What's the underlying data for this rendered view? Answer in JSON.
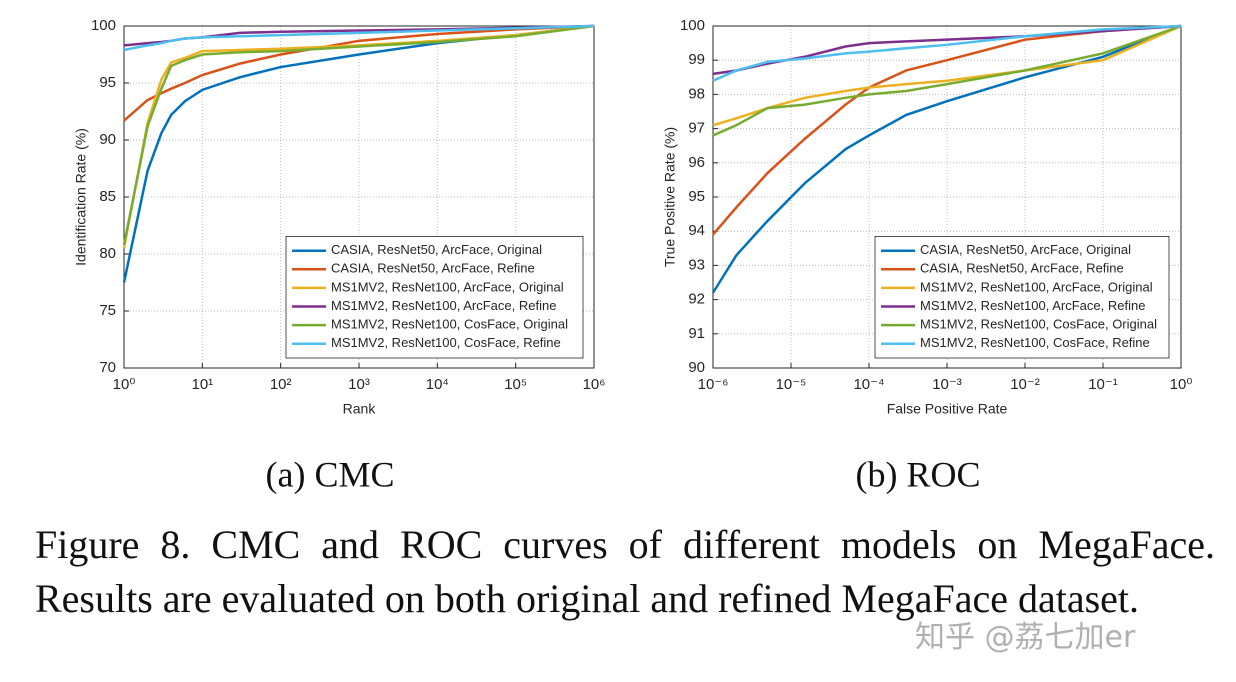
{
  "chart_data": [
    {
      "type": "line",
      "caption": "(a) CMC",
      "xlabel": "Rank",
      "ylabel": "Identification Rate (%)",
      "xscale": "log",
      "grid": true,
      "legend": "lower right",
      "xlim": [
        1,
        1000000
      ],
      "ylim": [
        70,
        100
      ],
      "xticks": [
        {
          "value": 1,
          "label": "10⁰"
        },
        {
          "value": 10,
          "label": "10¹"
        },
        {
          "value": 100,
          "label": "10²"
        },
        {
          "value": 1000,
          "label": "10³"
        },
        {
          "value": 10000,
          "label": "10⁴"
        },
        {
          "value": 100000,
          "label": "10⁵"
        },
        {
          "value": 1000000,
          "label": "10⁶"
        }
      ],
      "yticks": [
        70,
        75,
        80,
        85,
        90,
        95,
        100
      ],
      "x": [
        1,
        2,
        3,
        4,
        6,
        10,
        30,
        100,
        1000,
        10000,
        100000,
        1000000
      ],
      "series": [
        {
          "name": "CASIA, ResNet50, ArcFace, Original",
          "color": "#0072BD",
          "values": [
            77.5,
            87.3,
            90.6,
            92.2,
            93.4,
            94.4,
            95.5,
            96.4,
            97.5,
            98.5,
            99.2,
            100
          ]
        },
        {
          "name": "CASIA, ResNet50, ArcFace, Refine",
          "color": "#D95319",
          "values": [
            91.7,
            93.5,
            94.1,
            94.5,
            95.0,
            95.7,
            96.7,
            97.5,
            98.7,
            99.3,
            99.7,
            100
          ]
        },
        {
          "name": "MS1MV2, ResNet100, ArcFace, Original",
          "color": "#EDB120",
          "values": [
            80.5,
            91.5,
            95.3,
            96.8,
            97.2,
            97.8,
            97.9,
            98.0,
            98.3,
            98.7,
            99.2,
            100
          ]
        },
        {
          "name": "MS1MV2, ResNet100, ArcFace, Refine",
          "color": "#7E2F8E",
          "values": [
            98.3,
            98.5,
            98.6,
            98.7,
            98.9,
            99.0,
            99.4,
            99.5,
            99.6,
            99.7,
            99.85,
            100
          ]
        },
        {
          "name": "MS1MV2, ResNet100, CosFace, Original",
          "color": "#77AC30",
          "values": [
            80.8,
            91.2,
            94.5,
            96.5,
            97.0,
            97.5,
            97.7,
            97.8,
            98.2,
            98.6,
            99.1,
            100
          ]
        },
        {
          "name": "MS1MV2, ResNet100, CosFace, Refine",
          "color": "#4DBEEE",
          "values": [
            97.9,
            98.3,
            98.5,
            98.7,
            98.9,
            99.0,
            99.1,
            99.2,
            99.4,
            99.6,
            99.8,
            100
          ]
        }
      ]
    },
    {
      "type": "line",
      "caption": "(b) ROC",
      "xlabel": "False Positive Rate",
      "ylabel": "True Positive Rate (%)",
      "xscale": "log",
      "grid": true,
      "legend": "lower right",
      "xlim": [
        1e-06,
        1
      ],
      "ylim": [
        90,
        100
      ],
      "xticks": [
        {
          "value": 1e-06,
          "label": "10⁻⁶"
        },
        {
          "value": 1e-05,
          "label": "10⁻⁵"
        },
        {
          "value": 0.0001,
          "label": "10⁻⁴"
        },
        {
          "value": 0.001,
          "label": "10⁻³"
        },
        {
          "value": 0.01,
          "label": "10⁻²"
        },
        {
          "value": 0.1,
          "label": "10⁻¹"
        },
        {
          "value": 1,
          "label": "10⁰"
        }
      ],
      "yticks": [
        90,
        91,
        92,
        93,
        94,
        95,
        96,
        97,
        98,
        99,
        100
      ],
      "x": [
        1e-06,
        2e-06,
        5e-06,
        1.5e-05,
        5e-05,
        0.0001,
        0.0003,
        0.001,
        0.01,
        0.1,
        1
      ],
      "series": [
        {
          "name": "CASIA, ResNet50, ArcFace, Original",
          "color": "#0072BD",
          "values": [
            92.2,
            93.3,
            94.3,
            95.4,
            96.4,
            96.8,
            97.4,
            97.8,
            98.5,
            99.1,
            100
          ]
        },
        {
          "name": "CASIA, ResNet50, ArcFace, Refine",
          "color": "#D95319",
          "values": [
            93.9,
            94.7,
            95.7,
            96.7,
            97.7,
            98.2,
            98.7,
            99.0,
            99.6,
            99.85,
            100
          ]
        },
        {
          "name": "MS1MV2, ResNet100, ArcFace, Original",
          "color": "#EDB120",
          "values": [
            97.1,
            97.3,
            97.6,
            97.9,
            98.1,
            98.2,
            98.3,
            98.4,
            98.7,
            99.0,
            100
          ]
        },
        {
          "name": "MS1MV2, ResNet100, ArcFace, Refine",
          "color": "#7E2F8E",
          "values": [
            98.6,
            98.7,
            98.9,
            99.1,
            99.4,
            99.5,
            99.55,
            99.6,
            99.7,
            99.85,
            100
          ]
        },
        {
          "name": "MS1MV2, ResNet100, CosFace, Original",
          "color": "#77AC30",
          "values": [
            96.8,
            97.1,
            97.6,
            97.7,
            97.9,
            98.0,
            98.1,
            98.3,
            98.7,
            99.2,
            100
          ]
        },
        {
          "name": "MS1MV2, ResNet100, CosFace, Refine",
          "color": "#4DBEEE",
          "values": [
            98.4,
            98.7,
            98.95,
            99.05,
            99.2,
            99.25,
            99.35,
            99.45,
            99.7,
            99.9,
            100
          ]
        }
      ]
    }
  ],
  "figure_caption": "Figure 8. CMC and ROC curves of different models on MegaFace. Results are evaluated on both original and refined MegaFace dataset.",
  "watermark": "知乎 @荔七加er"
}
